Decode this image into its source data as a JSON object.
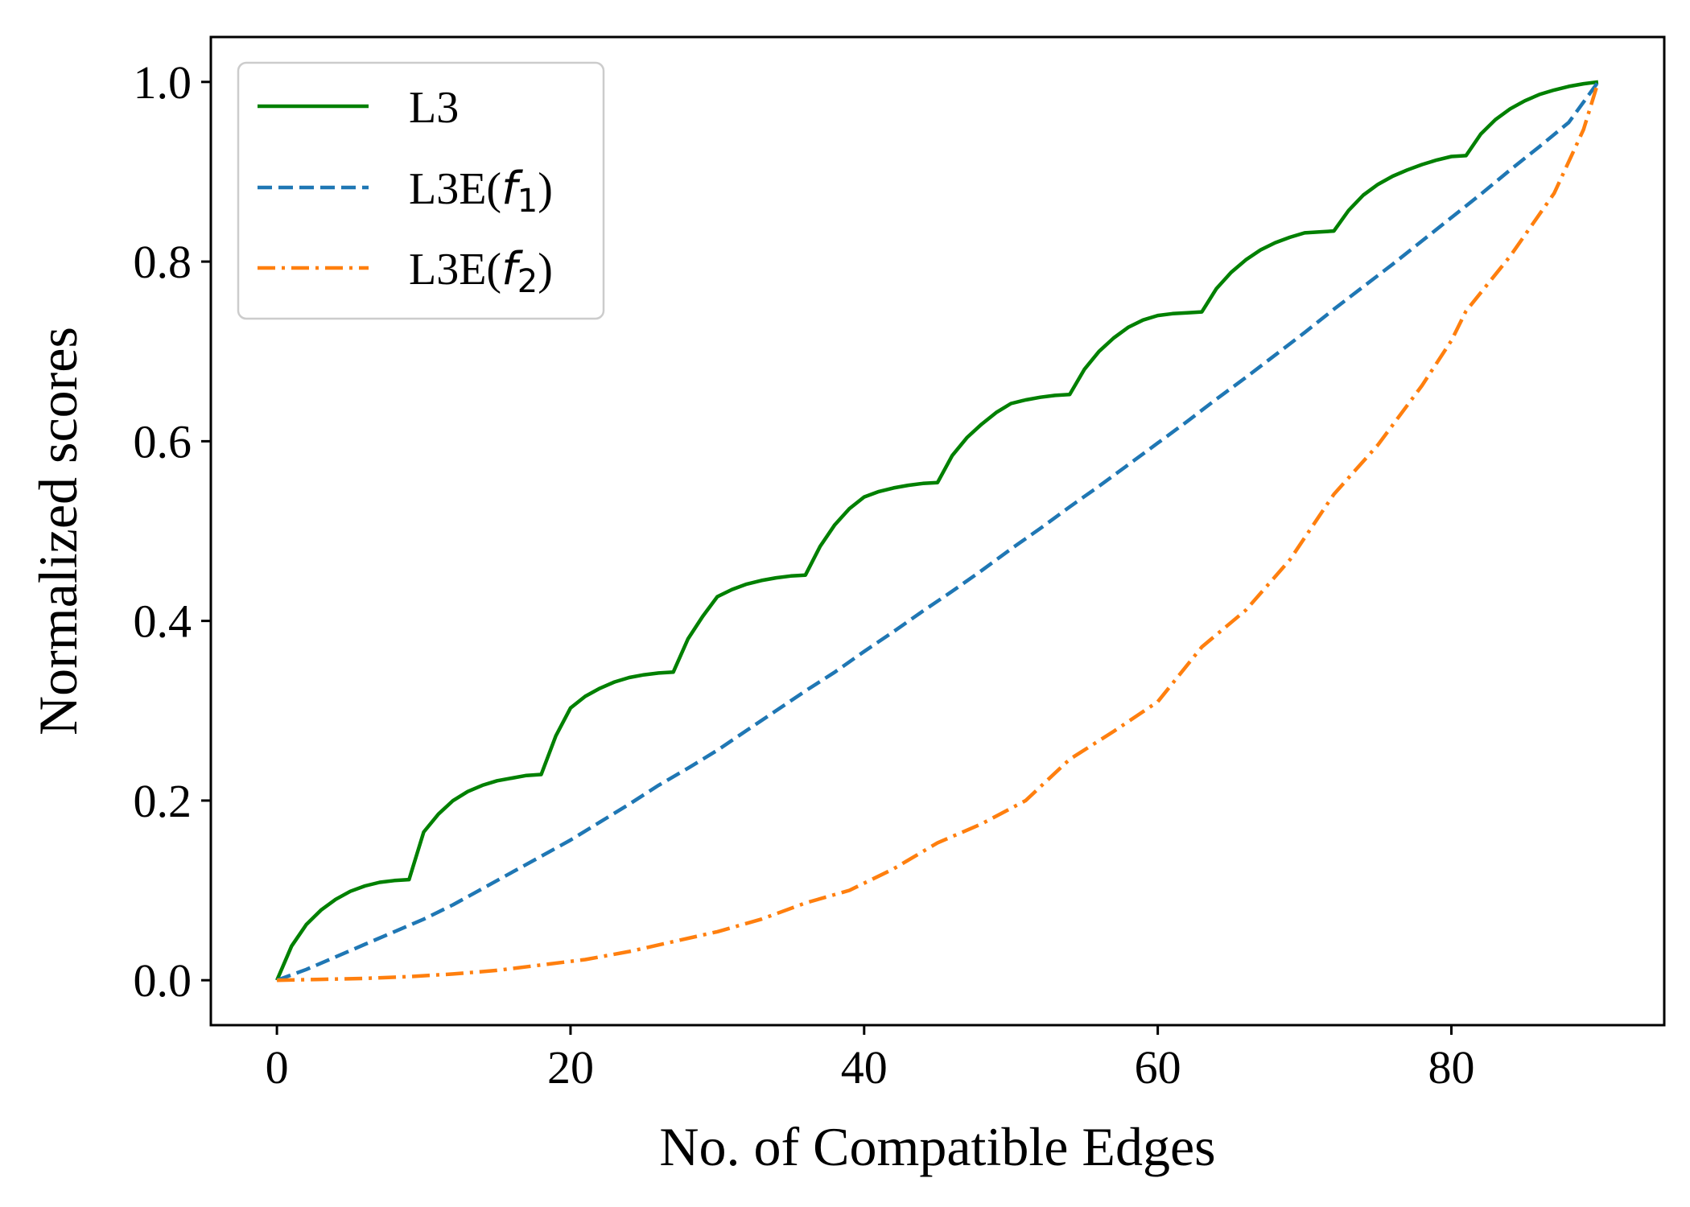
{
  "chart_data": {
    "type": "line",
    "title": "",
    "xlabel": "No. of Compatible Edges",
    "ylabel": "Normalized scores",
    "xlim": [
      -4.5,
      94.5
    ],
    "ylim": [
      -0.05,
      1.05
    ],
    "xticks": [
      0,
      20,
      40,
      60,
      80
    ],
    "yticks": [
      0.0,
      0.2,
      0.4,
      0.6,
      0.8,
      1.0
    ],
    "xtick_labels": [
      "0",
      "20",
      "40",
      "60",
      "80"
    ],
    "ytick_labels": [
      "0.0",
      "0.2",
      "0.4",
      "0.6",
      "0.8",
      "1.0"
    ],
    "grid": false,
    "legend_position": "top-left",
    "series": [
      {
        "name": "L3",
        "color": "#008000",
        "style": "solid",
        "x": [
          0,
          1,
          2,
          3,
          4,
          5,
          6,
          7,
          8,
          9,
          10,
          11,
          12,
          13,
          14,
          15,
          16,
          17,
          18,
          19,
          20,
          21,
          22,
          23,
          24,
          25,
          26,
          27,
          28,
          29,
          30,
          31,
          32,
          33,
          34,
          35,
          36,
          37,
          38,
          39,
          40,
          41,
          42,
          43,
          44,
          45,
          46,
          47,
          48,
          49,
          50,
          51,
          52,
          53,
          54,
          55,
          56,
          57,
          58,
          59,
          60,
          61,
          62,
          63,
          64,
          65,
          66,
          67,
          68,
          69,
          70,
          71,
          72,
          73,
          74,
          75,
          76,
          77,
          78,
          79,
          80,
          81,
          82,
          83,
          84,
          85,
          86,
          87,
          88,
          89,
          90
        ],
        "y": [
          0.0,
          0.038,
          0.062,
          0.078,
          0.09,
          0.099,
          0.105,
          0.109,
          0.111,
          0.112,
          0.165,
          0.185,
          0.2,
          0.21,
          0.217,
          0.222,
          0.225,
          0.228,
          0.229,
          0.272,
          0.303,
          0.316,
          0.325,
          0.332,
          0.337,
          0.34,
          0.342,
          0.343,
          0.38,
          0.405,
          0.427,
          0.435,
          0.441,
          0.445,
          0.448,
          0.45,
          0.451,
          0.483,
          0.507,
          0.525,
          0.538,
          0.544,
          0.548,
          0.551,
          0.553,
          0.554,
          0.584,
          0.604,
          0.619,
          0.632,
          0.642,
          0.646,
          0.649,
          0.651,
          0.652,
          0.68,
          0.7,
          0.715,
          0.727,
          0.735,
          0.74,
          0.742,
          0.743,
          0.744,
          0.77,
          0.788,
          0.802,
          0.813,
          0.821,
          0.827,
          0.832,
          0.833,
          0.834,
          0.857,
          0.874,
          0.886,
          0.895,
          0.902,
          0.908,
          0.913,
          0.917,
          0.918,
          0.942,
          0.958,
          0.97,
          0.979,
          0.986,
          0.991,
          0.995,
          0.998,
          1.0
        ]
      },
      {
        "name": "L3E(f1)",
        "color": "#1f77b4",
        "style": "dashed",
        "x": [
          0,
          2,
          4,
          6,
          8,
          10,
          12,
          14,
          16,
          18,
          20,
          22,
          24,
          26,
          28,
          30,
          32,
          34,
          36,
          38,
          40,
          42,
          44,
          46,
          48,
          50,
          52,
          54,
          56,
          58,
          60,
          62,
          64,
          66,
          68,
          70,
          72,
          74,
          76,
          78,
          80,
          82,
          84,
          86,
          88,
          90
        ],
        "y": [
          0.0,
          0.012,
          0.026,
          0.04,
          0.054,
          0.068,
          0.084,
          0.102,
          0.12,
          0.138,
          0.156,
          0.176,
          0.196,
          0.217,
          0.236,
          0.256,
          0.278,
          0.3,
          0.322,
          0.343,
          0.366,
          0.388,
          0.411,
          0.433,
          0.456,
          0.48,
          0.503,
          0.527,
          0.55,
          0.574,
          0.598,
          0.622,
          0.647,
          0.671,
          0.696,
          0.721,
          0.747,
          0.772,
          0.797,
          0.823,
          0.849,
          0.875,
          0.902,
          0.928,
          0.955,
          1.0
        ]
      },
      {
        "name": "L3E(f2)",
        "color": "#ff7f0e",
        "style": "dashdot",
        "x": [
          0,
          3,
          6,
          9,
          12,
          15,
          18,
          21,
          24,
          27,
          30,
          33,
          36,
          39,
          42,
          45,
          48,
          51,
          54,
          57,
          60,
          63,
          66,
          69,
          72,
          75,
          78,
          80,
          81,
          84,
          87,
          89,
          90
        ],
        "y": [
          0.0,
          0.001,
          0.002,
          0.004,
          0.007,
          0.011,
          0.017,
          0.023,
          0.032,
          0.043,
          0.054,
          0.068,
          0.086,
          0.1,
          0.124,
          0.153,
          0.174,
          0.2,
          0.246,
          0.277,
          0.31,
          0.371,
          0.412,
          0.468,
          0.541,
          0.596,
          0.662,
          0.712,
          0.745,
          0.806,
          0.876,
          0.947,
          1.0
        ]
      }
    ]
  },
  "legend": {
    "entries": [
      {
        "label": "L3",
        "base": "L3",
        "func": "",
        "sub": ""
      },
      {
        "label": "L3E(f1)",
        "base": "L3E(",
        "func": "f",
        "sub": "1",
        "close": ")"
      },
      {
        "label": "L3E(f2)",
        "base": "L3E(",
        "func": "f",
        "sub": "2",
        "close": ")"
      }
    ]
  }
}
